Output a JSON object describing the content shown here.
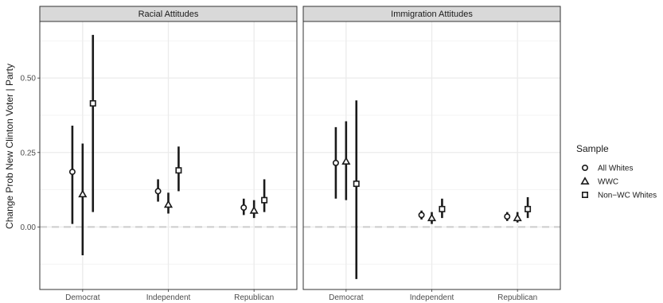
{
  "chart_data": {
    "type": "scatter",
    "subtype": "point-range",
    "ylabel": "Change Prob New Clinton Voter | Party",
    "xlabel": "",
    "ylim": [
      -0.21,
      0.69
    ],
    "yticks": [
      0.0,
      0.25,
      0.5
    ],
    "ytick_labels": [
      "0.00",
      "0.25",
      "0.50"
    ],
    "zero_line": {
      "y": 0.0,
      "style": "dashed",
      "color": "#cccccc"
    },
    "categories": [
      "Democrat",
      "Independent",
      "Republican"
    ],
    "legend": {
      "title": "Sample",
      "placement": "right",
      "entries": [
        {
          "name": "All Whites",
          "shape": "circle"
        },
        {
          "name": "WWC",
          "shape": "triangle"
        },
        {
          "name": "Non−WC Whites",
          "shape": "square"
        }
      ]
    },
    "panels": [
      {
        "strip": "Racial Attitudes",
        "series": [
          {
            "name": "All Whites",
            "shape": "circle",
            "estimate": [
              0.185,
              0.12,
              0.065
            ],
            "low": [
              0.01,
              0.085,
              0.04
            ],
            "high": [
              0.34,
              0.16,
              0.095
            ]
          },
          {
            "name": "WWC",
            "shape": "triangle",
            "estimate": [
              0.11,
              0.075,
              0.055
            ],
            "low": [
              -0.095,
              0.045,
              0.03
            ],
            "high": [
              0.28,
              0.115,
              0.09
            ]
          },
          {
            "name": "Non−WC Whites",
            "shape": "square",
            "estimate": [
              0.415,
              0.19,
              0.09
            ],
            "low": [
              0.05,
              0.12,
              0.05
            ],
            "high": [
              0.645,
              0.27,
              0.16
            ]
          }
        ]
      },
      {
        "strip": "Immigration Attitudes",
        "series": [
          {
            "name": "All Whites",
            "shape": "circle",
            "estimate": [
              0.215,
              0.04,
              0.035
            ],
            "low": [
              0.095,
              0.025,
              0.02
            ],
            "high": [
              0.335,
              0.055,
              0.05
            ]
          },
          {
            "name": "WWC",
            "shape": "triangle",
            "estimate": [
              0.22,
              0.03,
              0.03
            ],
            "low": [
              0.09,
              0.01,
              0.015
            ],
            "high": [
              0.355,
              0.05,
              0.05
            ]
          },
          {
            "name": "Non−WC Whites",
            "shape": "square",
            "estimate": [
              0.145,
              0.06,
              0.06
            ],
            "low": [
              -0.175,
              0.03,
              0.03
            ],
            "high": [
              0.425,
              0.095,
              0.1
            ]
          }
        ]
      }
    ]
  }
}
